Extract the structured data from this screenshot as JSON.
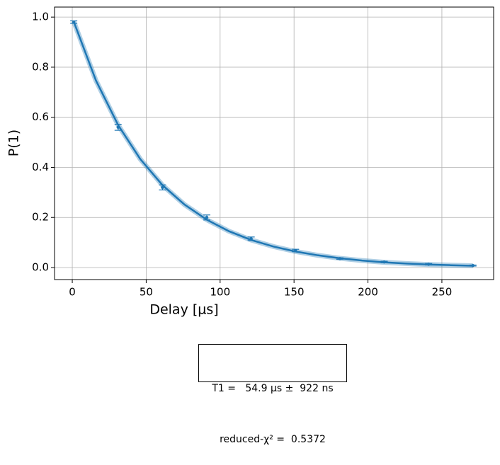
{
  "chart_data": {
    "type": "errorbar",
    "xlabel": "Delay [µs]",
    "ylabel": "P(1)",
    "xlim": [
      -12,
      285
    ],
    "ylim": [
      -0.048,
      1.04
    ],
    "xticks": [
      0,
      50,
      100,
      150,
      200,
      250
    ],
    "yticks": [
      {
        "value": 0,
        "label": "0.0"
      },
      0.2,
      0.4,
      0.6,
      0.8,
      {
        "value": 1,
        "label": "1.0"
      }
    ],
    "grid": true,
    "series": [
      {
        "color": "#1f77b4",
        "x": [
          1,
          31,
          61,
          91,
          121,
          151,
          181,
          211,
          241,
          271
        ],
        "values": [
          0.98,
          0.56,
          0.32,
          0.2,
          0.115,
          0.068,
          0.036,
          0.022,
          0.013,
          0.008
        ],
        "errors": [
          0.005,
          0.012,
          0.01,
          0.01,
          0.007,
          0.005,
          0.003,
          0.003,
          0.003,
          0.002
        ]
      },
      {
        "color": "#1f77b4",
        "x": [
          1,
          16,
          31,
          46,
          61,
          76,
          91,
          106,
          121,
          136,
          151,
          166,
          181,
          196,
          211,
          226,
          241,
          256,
          271
        ],
        "values": [
          0.982,
          0.747,
          0.569,
          0.433,
          0.329,
          0.251,
          0.191,
          0.145,
          0.11,
          0.084,
          0.064,
          0.049,
          0.037,
          0.028,
          0.021,
          0.016,
          0.012,
          0.0094,
          0.0072
        ]
      }
    ],
    "annotation": [
      "T1 =   54.9 µs ±  922 ns",
      "reduced-χ² =  0.5372"
    ]
  }
}
